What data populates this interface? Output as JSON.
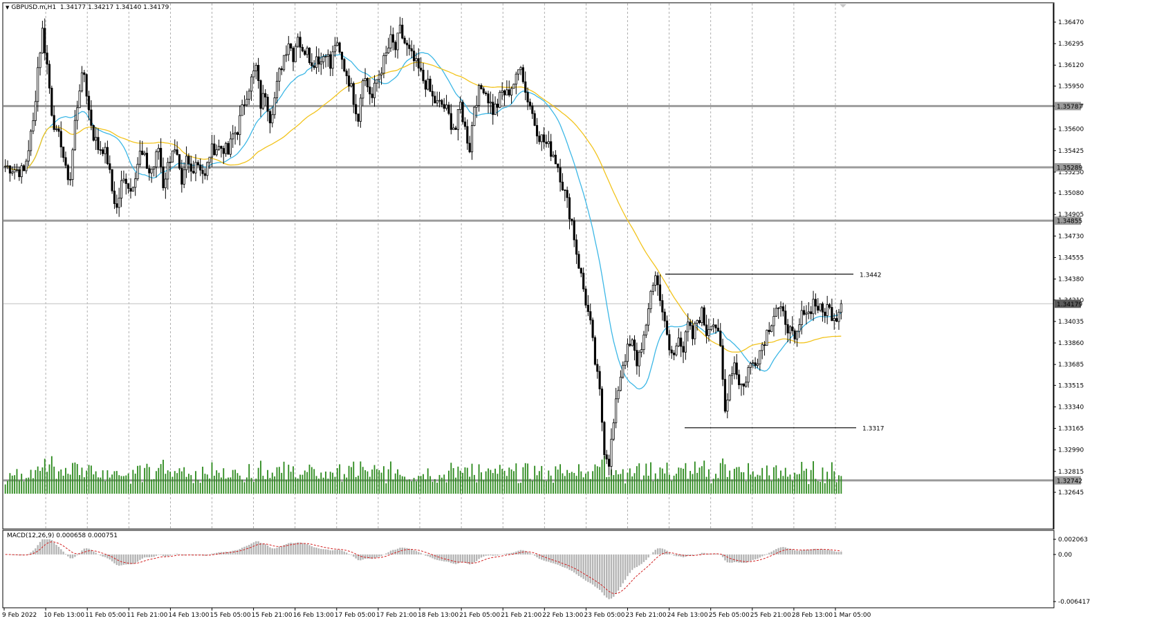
{
  "header": {
    "symbol": "GBPUSD.m,H1",
    "ohlc": "1.34177 1.34217 1.34140 1.34179"
  },
  "macd": {
    "label": "MACD(12,26,9) 0.000658 0.000751",
    "axis_labels": [
      "0.002063",
      "0.00",
      "-0.006417"
    ],
    "ylim": [
      -0.006417,
      0.002063
    ]
  },
  "colors": {
    "bull": "#000000",
    "bear": "#000000",
    "volume": "#2e8b1f",
    "ma_fast": "#3cb7e6",
    "ma_slow": "#f2c31b",
    "level_line": "#9b9b9b",
    "grid": "#9b9b9b",
    "macd_hist": "#b4b4b4",
    "macd_signal": "#d22020"
  },
  "chart_data": {
    "type": "candlestick",
    "ylim": [
      1.32645,
      1.3647
    ],
    "y_ticks": [
      "1.36470",
      "1.36295",
      "1.36120",
      "1.35950",
      "1.35787",
      "1.35600",
      "1.35425",
      "1.35250",
      "1.35080",
      "1.34905",
      "1.34730",
      "1.34555",
      "1.34380",
      "1.34210",
      "1.34035",
      "1.33860",
      "1.33685",
      "1.33515",
      "1.33340",
      "1.33165",
      "1.32990",
      "1.32815",
      "1.32645"
    ],
    "x_labels": [
      "9 Feb 2022",
      "10 Feb 13:00",
      "11 Feb 05:00",
      "11 Feb 21:00",
      "14 Feb 13:00",
      "15 Feb 05:00",
      "15 Feb 21:00",
      "16 Feb 13:00",
      "17 Feb 05:00",
      "17 Feb 21:00",
      "18 Feb 13:00",
      "21 Feb 05:00",
      "21 Feb 21:00",
      "22 Feb 13:00",
      "23 Feb 05:00",
      "23 Feb 21:00",
      "24 Feb 13:00",
      "25 Feb 05:00",
      "25 Feb 21:00",
      "28 Feb 13:00",
      "1 Mar 05:00"
    ],
    "horizontal_levels": [
      {
        "price": 1.35787,
        "label": "1.35787"
      },
      {
        "price": 1.35289,
        "label": "1.35289"
      },
      {
        "price": 1.34855,
        "label": "1.34855"
      },
      {
        "price": 1.32742,
        "label": "1.32742"
      }
    ],
    "current_price": {
      "price": 1.34179,
      "label": "1.34179"
    },
    "annotations": [
      {
        "label": "1.3442",
        "price": 1.3442
      },
      {
        "label": "1.3317",
        "price": 1.3317
      }
    ],
    "anchors": [
      [
        0,
        1.353
      ],
      [
        8,
        1.3525
      ],
      [
        12,
        1.3565
      ],
      [
        14,
        1.361
      ],
      [
        16,
        1.364
      ],
      [
        18,
        1.3612
      ],
      [
        20,
        1.3575
      ],
      [
        22,
        1.3555
      ],
      [
        24,
        1.355
      ],
      [
        26,
        1.3525
      ],
      [
        28,
        1.352
      ],
      [
        30,
        1.3565
      ],
      [
        32,
        1.3595
      ],
      [
        34,
        1.3605
      ],
      [
        36,
        1.3575
      ],
      [
        38,
        1.3555
      ],
      [
        40,
        1.3545
      ],
      [
        42,
        1.3545
      ],
      [
        44,
        1.3535
      ],
      [
        46,
        1.351
      ],
      [
        48,
        1.3495
      ],
      [
        50,
        1.3515
      ],
      [
        52,
        1.352
      ],
      [
        54,
        1.351
      ],
      [
        56,
        1.3525
      ],
      [
        58,
        1.354
      ],
      [
        60,
        1.3535
      ],
      [
        62,
        1.3525
      ],
      [
        64,
        1.353
      ],
      [
        66,
        1.3545
      ],
      [
        68,
        1.3515
      ],
      [
        70,
        1.353
      ],
      [
        72,
        1.3545
      ],
      [
        74,
        1.3535
      ],
      [
        76,
        1.351
      ],
      [
        78,
        1.3535
      ],
      [
        80,
        1.3525
      ],
      [
        82,
        1.3535
      ],
      [
        84,
        1.353
      ],
      [
        86,
        1.352
      ],
      [
        88,
        1.354
      ],
      [
        90,
        1.3545
      ],
      [
        92,
        1.3545
      ],
      [
        94,
        1.3545
      ],
      [
        96,
        1.354
      ],
      [
        98,
        1.3555
      ],
      [
        100,
        1.356
      ],
      [
        102,
        1.3575
      ],
      [
        104,
        1.359
      ],
      [
        106,
        1.36
      ],
      [
        108,
        1.361
      ],
      [
        110,
        1.358
      ],
      [
        112,
        1.359
      ],
      [
        114,
        1.357
      ],
      [
        116,
        1.3585
      ],
      [
        118,
        1.3605
      ],
      [
        120,
        1.362
      ],
      [
        122,
        1.3632
      ],
      [
        124,
        1.362
      ],
      [
        126,
        1.3638
      ],
      [
        128,
        1.362
      ],
      [
        130,
        1.363
      ],
      [
        132,
        1.361
      ],
      [
        134,
        1.362
      ],
      [
        136,
        1.3615
      ],
      [
        138,
        1.3625
      ],
      [
        140,
        1.361
      ],
      [
        142,
        1.363
      ],
      [
        144,
        1.362
      ],
      [
        146,
        1.361
      ],
      [
        148,
        1.36
      ],
      [
        150,
        1.3585
      ],
      [
        152,
        1.357
      ],
      [
        154,
        1.3605
      ],
      [
        156,
        1.3595
      ],
      [
        158,
        1.3585
      ],
      [
        160,
        1.36
      ],
      [
        162,
        1.361
      ],
      [
        164,
        1.362
      ],
      [
        166,
        1.3632
      ],
      [
        168,
        1.3625
      ],
      [
        170,
        1.364
      ],
      [
        172,
        1.363
      ],
      [
        174,
        1.3622
      ],
      [
        176,
        1.3615
      ],
      [
        178,
        1.3608
      ],
      [
        180,
        1.36
      ],
      [
        182,
        1.3595
      ],
      [
        184,
        1.3585
      ],
      [
        186,
        1.358
      ],
      [
        188,
        1.358
      ],
      [
        190,
        1.3575
      ],
      [
        192,
        1.3565
      ],
      [
        194,
        1.356
      ],
      [
        196,
        1.358
      ],
      [
        198,
        1.356
      ],
      [
        200,
        1.3545
      ],
      [
        202,
        1.358
      ],
      [
        204,
        1.359
      ],
      [
        206,
        1.3595
      ],
      [
        208,
        1.3585
      ],
      [
        210,
        1.3575
      ],
      [
        212,
        1.358
      ],
      [
        214,
        1.359
      ],
      [
        216,
        1.3588
      ],
      [
        218,
        1.3595
      ],
      [
        220,
        1.36
      ],
      [
        222,
        1.3615
      ],
      [
        224,
        1.359
      ],
      [
        226,
        1.358
      ],
      [
        228,
        1.3565
      ],
      [
        230,
        1.3555
      ],
      [
        232,
        1.355
      ],
      [
        234,
        1.3545
      ],
      [
        236,
        1.354
      ],
      [
        238,
        1.353
      ],
      [
        240,
        1.3515
      ],
      [
        242,
        1.35
      ],
      [
        244,
        1.3485
      ],
      [
        246,
        1.346
      ],
      [
        248,
        1.344
      ],
      [
        250,
        1.342
      ],
      [
        252,
        1.34
      ],
      [
        254,
        1.337
      ],
      [
        256,
        1.3345
      ],
      [
        258,
        1.33
      ],
      [
        260,
        1.329
      ],
      [
        262,
        1.332
      ],
      [
        264,
        1.335
      ],
      [
        266,
        1.337
      ],
      [
        268,
        1.338
      ],
      [
        270,
        1.3385
      ],
      [
        272,
        1.337
      ],
      [
        274,
        1.3385
      ],
      [
        276,
        1.3395
      ],
      [
        278,
        1.343
      ],
      [
        280,
        1.344
      ],
      [
        282,
        1.3425
      ],
      [
        284,
        1.34
      ],
      [
        286,
        1.338
      ],
      [
        288,
        1.3375
      ],
      [
        290,
        1.3395
      ],
      [
        292,
        1.338
      ],
      [
        294,
        1.34
      ],
      [
        296,
        1.339
      ],
      [
        298,
        1.3405
      ],
      [
        300,
        1.341
      ],
      [
        302,
        1.3395
      ],
      [
        304,
        1.3405
      ],
      [
        306,
        1.34
      ],
      [
        308,
        1.338
      ],
      [
        310,
        1.333
      ],
      [
        312,
        1.336
      ],
      [
        314,
        1.337
      ],
      [
        316,
        1.3355
      ],
      [
        318,
        1.335
      ],
      [
        320,
        1.3365
      ],
      [
        322,
        1.337
      ],
      [
        324,
        1.3375
      ],
      [
        326,
        1.3385
      ],
      [
        328,
        1.3395
      ],
      [
        330,
        1.3405
      ],
      [
        332,
        1.3415
      ],
      [
        334,
        1.341
      ],
      [
        336,
        1.3405
      ],
      [
        338,
        1.3395
      ],
      [
        340,
        1.3385
      ],
      [
        342,
        1.34
      ],
      [
        344,
        1.3415
      ],
      [
        346,
        1.341
      ],
      [
        348,
        1.342
      ],
      [
        350,
        1.3415
      ],
      [
        352,
        1.341
      ],
      [
        354,
        1.3415
      ],
      [
        356,
        1.341
      ],
      [
        358,
        1.3408
      ],
      [
        360,
        1.3418
      ]
    ]
  }
}
